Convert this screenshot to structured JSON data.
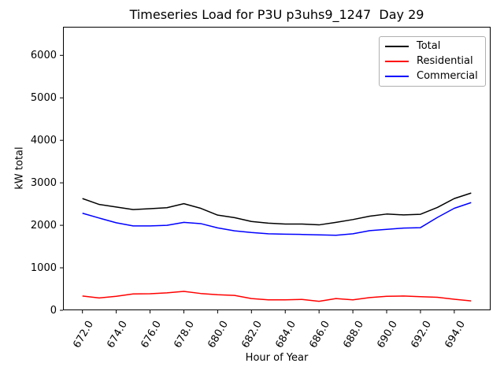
{
  "figure": {
    "background": "#ffffff",
    "spine_color": "#000000",
    "tick_color": "#000000"
  },
  "chart_data": {
    "type": "line",
    "title": "Timeseries Load for P3U p3uhs9_1247  Day 29",
    "xlabel": "Hour of Year",
    "ylabel": "kW total",
    "grid": false,
    "legend": {
      "position": "upper right",
      "entries": [
        "Total",
        "Residential",
        "Commercial"
      ]
    },
    "xlim": [
      670.85,
      696.15
    ],
    "ylim": [
      0,
      6673
    ],
    "x_ticks": [
      672,
      674,
      676,
      678,
      680,
      682,
      684,
      686,
      688,
      690,
      692,
      694
    ],
    "x_tick_labels": [
      "672.0",
      "674.0",
      "676.0",
      "678.0",
      "680.0",
      "682.0",
      "684.0",
      "686.0",
      "688.0",
      "690.0",
      "692.0",
      "694.0"
    ],
    "x_tick_rotation_deg": 60,
    "y_ticks": [
      0,
      1000,
      2000,
      3000,
      4000,
      5000,
      6000
    ],
    "y_tick_labels": [
      "0",
      "1000",
      "2000",
      "3000",
      "4000",
      "5000",
      "6000"
    ],
    "x": [
      672,
      673,
      674,
      675,
      676,
      677,
      678,
      679,
      680,
      681,
      682,
      683,
      684,
      685,
      686,
      687,
      688,
      689,
      690,
      691,
      692,
      693,
      694,
      695
    ],
    "series": [
      {
        "name": "Total",
        "color": "#000000",
        "values": [
          2630,
          2490,
          2430,
          2370,
          2390,
          2415,
          2510,
          2400,
          2240,
          2180,
          2090,
          2050,
          2030,
          2030,
          2010,
          2070,
          2135,
          2215,
          2265,
          2245,
          2260,
          2420,
          2630,
          2760
        ]
      },
      {
        "name": "Residential",
        "color": "#ff0000",
        "values": [
          335,
          290,
          330,
          385,
          390,
          410,
          445,
          395,
          365,
          350,
          275,
          245,
          245,
          255,
          210,
          275,
          245,
          300,
          330,
          335,
          320,
          305,
          260,
          220
        ]
      },
      {
        "name": "Commercial",
        "color": "#0000ff",
        "values": [
          2285,
          2170,
          2060,
          1985,
          1985,
          2000,
          2070,
          2040,
          1940,
          1870,
          1830,
          1800,
          1790,
          1785,
          1775,
          1765,
          1800,
          1875,
          1905,
          1935,
          1945,
          2185,
          2400,
          2535
        ]
      }
    ]
  }
}
